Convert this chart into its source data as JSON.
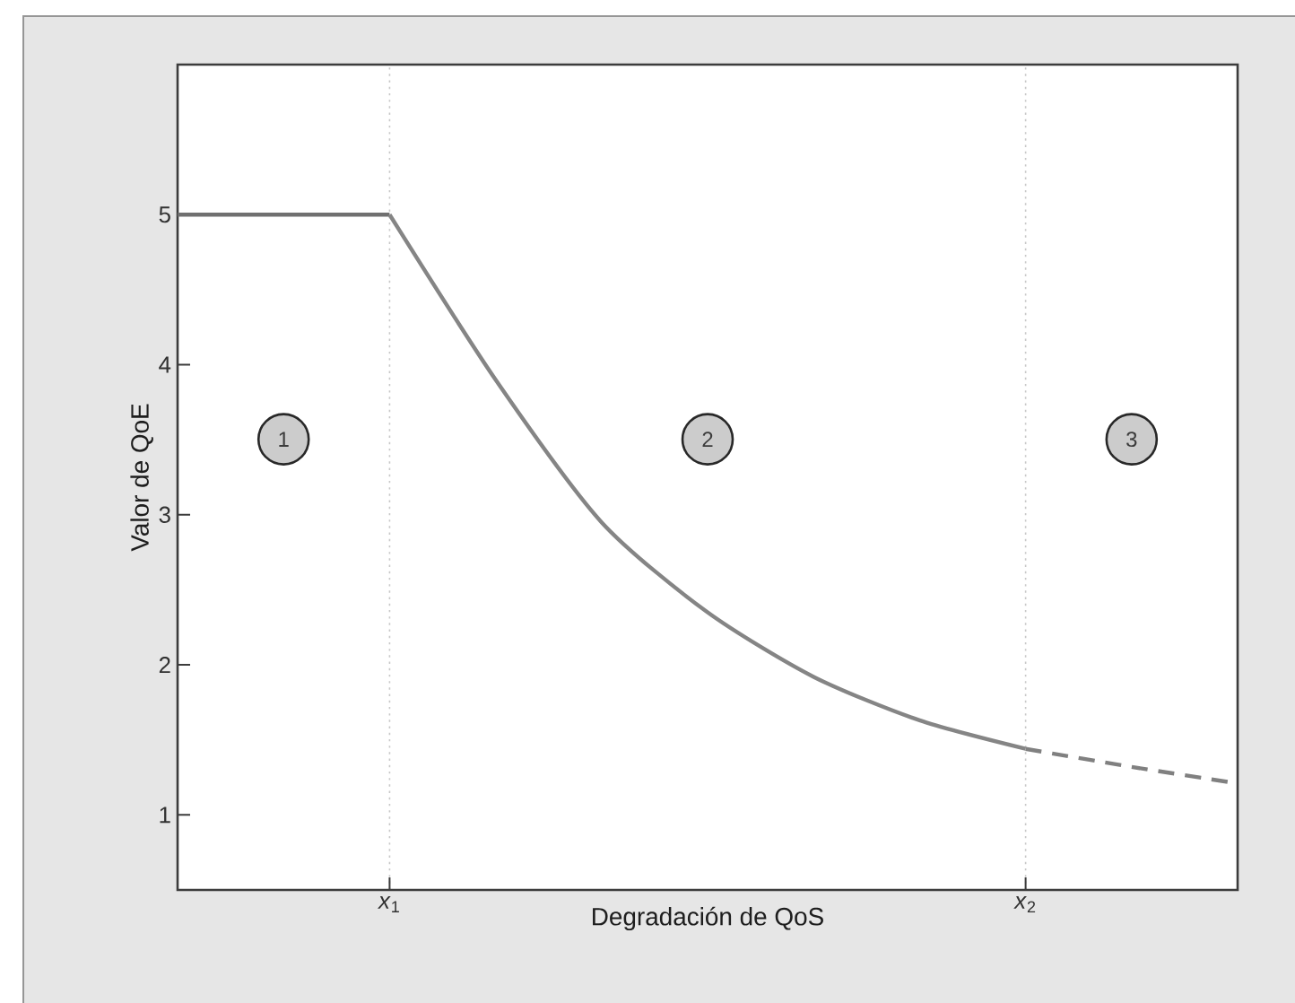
{
  "chart_data": {
    "type": "line",
    "xlabel": "Degradación de QoS",
    "ylabel": "Valor de QoE",
    "categories": [
      null,
      null,
      "*x*$_{1}$",
      null,
      null,
      null,
      null,
      null,
      "*x*$_{2}$",
      null,
      null
    ],
    "ylim": [
      0.5,
      6
    ],
    "yticks": [
      1,
      2,
      3,
      4,
      5
    ],
    "grid": "x",
    "series": [
      {
        "color": "#707070",
        "line_style": "solid",
        "values": [
          5,
          5,
          5,
          null,
          null,
          null,
          null,
          null,
          null,
          null,
          null
        ]
      },
      {
        "color": "#858585",
        "line_style": "solid",
        "values": [
          null,
          null,
          5,
          3.9,
          2.95,
          2.35,
          1.92,
          1.63,
          1.44,
          null,
          null
        ]
      },
      {
        "color": "#808080",
        "line_style": "dashed",
        "values": [
          null,
          null,
          null,
          null,
          null,
          null,
          null,
          null,
          1.44,
          1.32,
          1.21
        ]
      }
    ],
    "annotations": [
      "1",
      "2",
      "3"
    ]
  }
}
